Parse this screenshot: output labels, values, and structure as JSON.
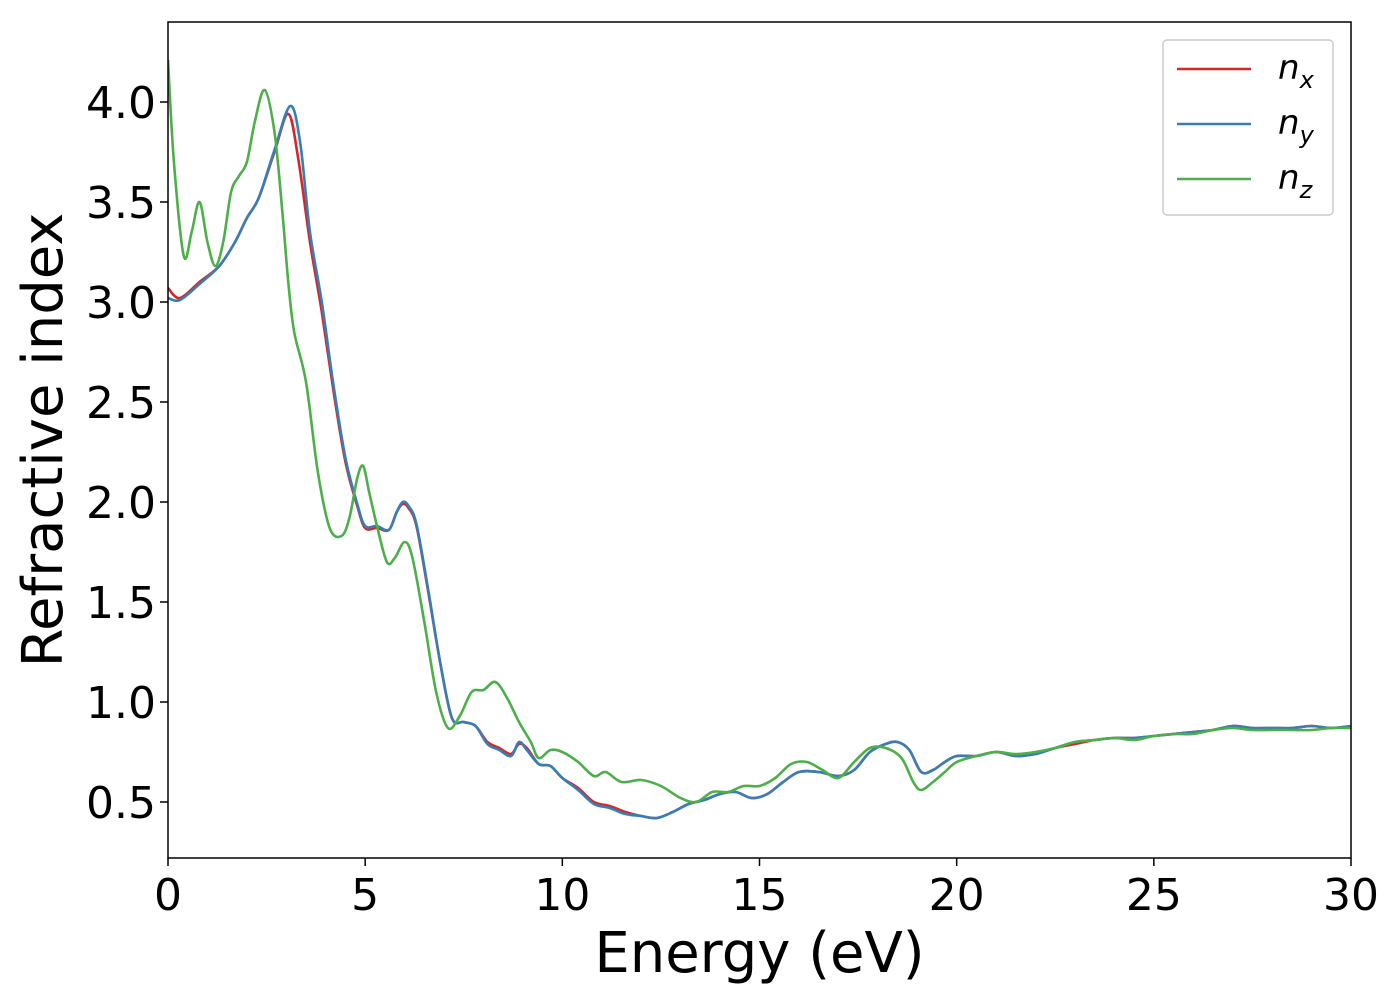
{
  "chart_data": {
    "type": "line",
    "title": "",
    "xlabel": "Energy (eV)",
    "ylabel": "Refractive index",
    "xlim": [
      0,
      30
    ],
    "ylim": [
      0.22,
      4.4
    ],
    "xticks": [
      0,
      5,
      10,
      15,
      20,
      25,
      30
    ],
    "xtick_labels": [
      "0",
      "5",
      "10",
      "15",
      "20",
      "25",
      "30"
    ],
    "yticks": [
      0.5,
      1.0,
      1.5,
      2.0,
      2.5,
      3.0,
      3.5,
      4.0
    ],
    "ytick_labels": [
      "0.5",
      "1.0",
      "1.5",
      "2.0",
      "2.5",
      "3.0",
      "3.5",
      "4.0"
    ],
    "grid": false,
    "legend_position": "top-right",
    "series": [
      {
        "name": "n_x",
        "label_base": "n",
        "label_sub": "x",
        "color": "#d62728",
        "x": [
          0,
          0.3,
          0.8,
          1.3,
          1.7,
          2.0,
          2.3,
          2.7,
          3.05,
          3.3,
          3.6,
          3.9,
          4.2,
          4.5,
          4.8,
          5.0,
          5.3,
          5.6,
          5.8,
          5.95,
          6.1,
          6.3,
          6.6,
          6.9,
          7.2,
          7.5,
          7.8,
          8.1,
          8.4,
          8.7,
          8.9,
          9.1,
          9.4,
          9.7,
          10.0,
          10.4,
          10.8,
          11.2,
          11.6,
          12.0,
          12.4,
          12.8,
          13.2,
          13.6,
          14.0,
          14.4,
          14.8,
          15.2,
          15.6,
          16.0,
          16.5,
          17.0,
          17.4,
          17.8,
          18.2,
          18.5,
          18.8,
          19.1,
          19.4,
          19.7,
          20.0,
          20.5,
          21.0,
          21.5,
          22.0,
          22.5,
          23.0,
          23.5,
          24.0,
          24.5,
          25.0,
          25.5,
          26.0,
          26.5,
          27.0,
          27.5,
          28.0,
          28.5,
          29.0,
          29.5,
          30.0
        ],
        "y": [
          3.07,
          3.02,
          3.1,
          3.18,
          3.3,
          3.42,
          3.52,
          3.75,
          3.94,
          3.72,
          3.3,
          2.95,
          2.55,
          2.2,
          1.98,
          1.87,
          1.87,
          1.86,
          1.95,
          1.99,
          1.97,
          1.88,
          1.55,
          1.2,
          0.92,
          0.9,
          0.88,
          0.8,
          0.77,
          0.74,
          0.79,
          0.77,
          0.69,
          0.68,
          0.62,
          0.57,
          0.5,
          0.48,
          0.45,
          0.43,
          0.42,
          0.45,
          0.49,
          0.51,
          0.54,
          0.55,
          0.52,
          0.54,
          0.6,
          0.65,
          0.65,
          0.63,
          0.66,
          0.75,
          0.79,
          0.8,
          0.76,
          0.65,
          0.66,
          0.7,
          0.73,
          0.73,
          0.75,
          0.73,
          0.74,
          0.77,
          0.79,
          0.81,
          0.82,
          0.82,
          0.83,
          0.84,
          0.85,
          0.86,
          0.88,
          0.87,
          0.87,
          0.87,
          0.88,
          0.87,
          0.88
        ]
      },
      {
        "name": "n_y",
        "label_base": "n",
        "label_sub": "y",
        "color": "#377eb8",
        "x": [
          0,
          0.3,
          0.8,
          1.3,
          1.7,
          2.0,
          2.3,
          2.7,
          3.1,
          3.35,
          3.6,
          3.9,
          4.2,
          4.5,
          4.8,
          5.0,
          5.3,
          5.6,
          5.8,
          5.95,
          6.1,
          6.3,
          6.6,
          6.9,
          7.2,
          7.5,
          7.8,
          8.1,
          8.4,
          8.7,
          8.9,
          9.1,
          9.4,
          9.7,
          10.0,
          10.4,
          10.8,
          11.2,
          11.6,
          12.0,
          12.4,
          12.8,
          13.2,
          13.6,
          14.0,
          14.4,
          14.8,
          15.2,
          15.6,
          16.0,
          16.5,
          17.0,
          17.4,
          17.8,
          18.2,
          18.5,
          18.8,
          19.1,
          19.4,
          19.7,
          20.0,
          20.5,
          21.0,
          21.5,
          22.0,
          22.5,
          23.0,
          23.5,
          24.0,
          24.5,
          25.0,
          25.5,
          26.0,
          26.5,
          27.0,
          27.5,
          28.0,
          28.5,
          29.0,
          29.5,
          30.0
        ],
        "y": [
          3.02,
          3.01,
          3.09,
          3.18,
          3.3,
          3.42,
          3.52,
          3.76,
          3.98,
          3.8,
          3.35,
          3.0,
          2.58,
          2.22,
          1.99,
          1.88,
          1.88,
          1.86,
          1.95,
          2.0,
          1.98,
          1.89,
          1.56,
          1.2,
          0.92,
          0.9,
          0.88,
          0.79,
          0.76,
          0.73,
          0.8,
          0.76,
          0.69,
          0.68,
          0.62,
          0.56,
          0.49,
          0.47,
          0.44,
          0.43,
          0.42,
          0.45,
          0.49,
          0.51,
          0.54,
          0.55,
          0.52,
          0.54,
          0.6,
          0.65,
          0.65,
          0.63,
          0.66,
          0.75,
          0.79,
          0.8,
          0.76,
          0.65,
          0.66,
          0.7,
          0.73,
          0.73,
          0.75,
          0.73,
          0.74,
          0.77,
          0.8,
          0.81,
          0.82,
          0.82,
          0.83,
          0.84,
          0.85,
          0.86,
          0.88,
          0.87,
          0.87,
          0.87,
          0.88,
          0.87,
          0.88
        ]
      },
      {
        "name": "n_z",
        "label_base": "n",
        "label_sub": "z",
        "color": "#4daf4a",
        "x": [
          0,
          0.15,
          0.4,
          0.6,
          0.8,
          1.0,
          1.2,
          1.4,
          1.6,
          1.8,
          2.0,
          2.2,
          2.45,
          2.7,
          2.9,
          3.05,
          3.2,
          3.5,
          3.8,
          4.1,
          4.4,
          4.6,
          4.8,
          4.95,
          5.1,
          5.3,
          5.55,
          5.75,
          6.0,
          6.2,
          6.5,
          6.8,
          7.1,
          7.4,
          7.7,
          8.0,
          8.3,
          8.6,
          8.9,
          9.2,
          9.4,
          9.7,
          10.0,
          10.4,
          10.8,
          11.1,
          11.5,
          12.0,
          12.5,
          13.0,
          13.4,
          13.8,
          14.2,
          14.6,
          15.0,
          15.4,
          15.8,
          16.2,
          16.6,
          17.0,
          17.4,
          17.8,
          18.2,
          18.6,
          18.9,
          19.1,
          19.4,
          19.7,
          20.0,
          20.5,
          21.0,
          21.5,
          22.0,
          22.5,
          23.0,
          23.5,
          24.0,
          24.5,
          25.0,
          25.5,
          26.0,
          26.5,
          27.0,
          27.5,
          28.0,
          28.5,
          29.0,
          29.5,
          30.0
        ],
        "y": [
          4.21,
          3.7,
          3.23,
          3.35,
          3.5,
          3.3,
          3.18,
          3.3,
          3.55,
          3.63,
          3.7,
          3.9,
          4.06,
          3.85,
          3.45,
          3.1,
          2.85,
          2.6,
          2.15,
          1.87,
          1.83,
          1.92,
          2.12,
          2.18,
          2.05,
          1.88,
          1.7,
          1.72,
          1.8,
          1.72,
          1.4,
          1.05,
          0.87,
          0.93,
          1.05,
          1.06,
          1.1,
          1.02,
          0.9,
          0.8,
          0.72,
          0.76,
          0.75,
          0.7,
          0.63,
          0.65,
          0.6,
          0.61,
          0.58,
          0.52,
          0.5,
          0.55,
          0.55,
          0.58,
          0.58,
          0.62,
          0.69,
          0.7,
          0.66,
          0.62,
          0.7,
          0.77,
          0.77,
          0.72,
          0.6,
          0.56,
          0.6,
          0.65,
          0.7,
          0.73,
          0.75,
          0.74,
          0.75,
          0.77,
          0.8,
          0.81,
          0.82,
          0.81,
          0.83,
          0.84,
          0.84,
          0.86,
          0.87,
          0.86,
          0.86,
          0.86,
          0.86,
          0.87,
          0.87
        ]
      }
    ]
  }
}
